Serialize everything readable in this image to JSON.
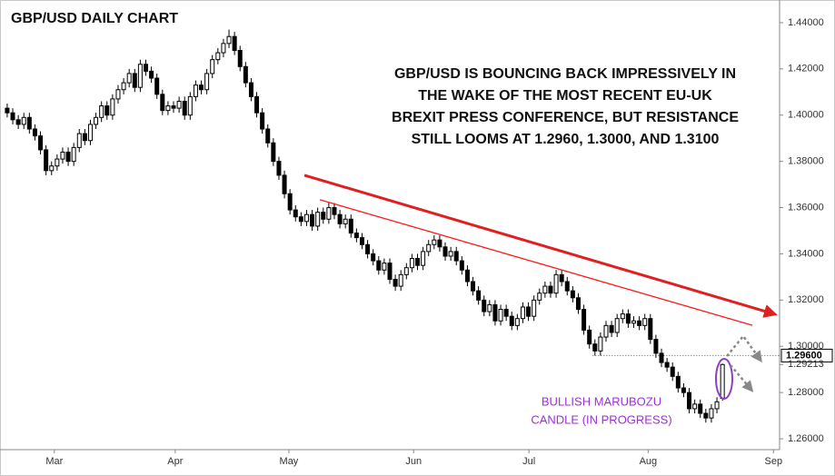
{
  "chart_data": {
    "type": "candlestick",
    "title": "GBP/USD DAILY CHART",
    "annotation": [
      "GBP/USD IS BOUNCING BACK IMPRESSIVELY IN",
      "THE WAKE OF THE MOST RECENT EU-UK",
      "BREXIT PRESS CONFERENCE, BUT RESISTANCE",
      "STILL LOOMS AT 1.2960, 1.3000, AND 1.3100"
    ],
    "candle_note": [
      "BULLISH MARUBOZU",
      "CANDLE (IN PROGRESS)"
    ],
    "open": [
      1.403,
      1.401,
      1.398,
      1.396,
      1.399,
      1.394,
      1.391,
      1.385,
      1.376,
      1.378,
      1.381,
      1.384,
      1.38,
      1.386,
      1.392,
      1.389,
      1.396,
      1.399,
      1.404,
      1.4,
      1.407,
      1.411,
      1.414,
      1.418,
      1.412,
      1.422,
      1.419,
      1.416,
      1.409,
      1.402,
      1.404,
      1.403,
      1.406,
      1.4,
      1.408,
      1.413,
      1.411,
      1.418,
      1.424,
      1.427,
      1.431,
      1.434,
      1.428,
      1.421,
      1.414,
      1.408,
      1.401,
      1.394,
      1.388,
      1.38,
      1.374,
      1.366,
      1.359,
      1.356,
      1.354,
      1.357,
      1.352,
      1.358,
      1.355,
      1.36,
      1.357,
      1.353,
      1.355,
      1.349,
      1.347,
      1.344,
      1.34,
      1.337,
      1.333,
      1.336,
      1.329,
      1.326,
      1.331,
      1.334,
      1.338,
      1.335,
      1.341,
      1.344,
      1.346,
      1.343,
      1.339,
      1.341,
      1.337,
      1.333,
      1.328,
      1.324,
      1.32,
      1.315,
      1.318,
      1.311,
      1.316,
      1.313,
      1.309,
      1.312,
      1.317,
      1.313,
      1.32,
      1.323,
      1.326,
      1.323,
      1.331,
      1.328,
      1.324,
      1.321,
      1.316,
      1.307,
      1.301,
      1.298,
      1.304,
      1.309,
      1.306,
      1.312,
      1.314,
      1.31,
      1.311,
      1.309,
      1.312,
      1.303,
      1.297,
      1.293,
      1.291,
      1.287,
      1.282,
      1.28,
      1.273,
      1.275,
      1.271,
      1.269,
      1.273,
      1.2775
    ],
    "high": [
      1.405,
      1.403,
      1.4,
      1.401,
      1.401,
      1.396,
      1.393,
      1.387,
      1.38,
      1.383,
      1.386,
      1.386,
      1.388,
      1.394,
      1.394,
      1.398,
      1.401,
      1.406,
      1.406,
      1.409,
      1.413,
      1.416,
      1.42,
      1.42,
      1.424,
      1.424,
      1.421,
      1.418,
      1.411,
      1.406,
      1.406,
      1.408,
      1.408,
      1.41,
      1.415,
      1.415,
      1.42,
      1.426,
      1.429,
      1.433,
      1.437,
      1.436,
      1.43,
      1.423,
      1.416,
      1.41,
      1.403,
      1.396,
      1.39,
      1.382,
      1.376,
      1.368,
      1.361,
      1.358,
      1.359,
      1.359,
      1.36,
      1.36,
      1.362,
      1.362,
      1.359,
      1.357,
      1.357,
      1.351,
      1.349,
      1.346,
      1.342,
      1.339,
      1.338,
      1.338,
      1.331,
      1.333,
      1.336,
      1.34,
      1.34,
      1.343,
      1.346,
      1.348,
      1.348,
      1.345,
      1.343,
      1.343,
      1.339,
      1.335,
      1.33,
      1.326,
      1.322,
      1.32,
      1.32,
      1.318,
      1.318,
      1.315,
      1.314,
      1.319,
      1.319,
      1.322,
      1.325,
      1.328,
      1.328,
      1.333,
      1.333,
      1.33,
      1.326,
      1.323,
      1.318,
      1.309,
      1.303,
      1.306,
      1.311,
      1.311,
      1.314,
      1.316,
      1.316,
      1.313,
      1.313,
      1.314,
      1.314,
      1.305,
      1.299,
      1.295,
      1.293,
      1.289,
      1.284,
      1.282,
      1.277,
      1.277,
      1.273,
      1.275,
      1.278,
      1.2925
    ],
    "low": [
      1.399,
      1.396,
      1.394,
      1.394,
      1.392,
      1.389,
      1.383,
      1.374,
      1.374,
      1.376,
      1.379,
      1.378,
      1.378,
      1.384,
      1.387,
      1.387,
      1.394,
      1.397,
      1.398,
      1.398,
      1.405,
      1.409,
      1.412,
      1.41,
      1.41,
      1.417,
      1.414,
      1.407,
      1.4,
      1.4,
      1.401,
      1.401,
      1.398,
      1.398,
      1.406,
      1.409,
      1.409,
      1.416,
      1.422,
      1.425,
      1.429,
      1.426,
      1.419,
      1.412,
      1.406,
      1.399,
      1.392,
      1.386,
      1.378,
      1.372,
      1.364,
      1.357,
      1.354,
      1.352,
      1.352,
      1.35,
      1.35,
      1.353,
      1.353,
      1.355,
      1.351,
      1.351,
      1.347,
      1.345,
      1.342,
      1.338,
      1.335,
      1.331,
      1.331,
      1.327,
      1.324,
      1.324,
      1.329,
      1.332,
      1.333,
      1.333,
      1.339,
      1.342,
      1.341,
      1.337,
      1.337,
      1.335,
      1.331,
      1.326,
      1.322,
      1.318,
      1.313,
      1.313,
      1.309,
      1.309,
      1.311,
      1.307,
      1.307,
      1.31,
      1.311,
      1.311,
      1.318,
      1.321,
      1.321,
      1.321,
      1.326,
      1.322,
      1.319,
      1.314,
      1.305,
      1.299,
      1.296,
      1.296,
      1.302,
      1.304,
      1.304,
      1.31,
      1.308,
      1.308,
      1.307,
      1.307,
      1.301,
      1.295,
      1.291,
      1.289,
      1.285,
      1.28,
      1.278,
      1.271,
      1.271,
      1.269,
      1.267,
      1.267,
      1.271,
      1.2765
    ],
    "close": [
      1.401,
      1.398,
      1.396,
      1.399,
      1.394,
      1.391,
      1.385,
      1.376,
      1.378,
      1.381,
      1.384,
      1.38,
      1.386,
      1.392,
      1.389,
      1.396,
      1.399,
      1.404,
      1.4,
      1.407,
      1.411,
      1.414,
      1.418,
      1.412,
      1.422,
      1.419,
      1.416,
      1.409,
      1.402,
      1.404,
      1.403,
      1.406,
      1.4,
      1.408,
      1.413,
      1.411,
      1.418,
      1.424,
      1.427,
      1.431,
      1.434,
      1.428,
      1.421,
      1.414,
      1.408,
      1.401,
      1.394,
      1.388,
      1.38,
      1.374,
      1.366,
      1.359,
      1.356,
      1.354,
      1.357,
      1.352,
      1.358,
      1.355,
      1.36,
      1.357,
      1.353,
      1.355,
      1.349,
      1.347,
      1.344,
      1.34,
      1.337,
      1.333,
      1.336,
      1.329,
      1.326,
      1.331,
      1.334,
      1.338,
      1.335,
      1.341,
      1.344,
      1.346,
      1.343,
      1.339,
      1.341,
      1.337,
      1.333,
      1.328,
      1.324,
      1.32,
      1.315,
      1.318,
      1.311,
      1.316,
      1.313,
      1.309,
      1.312,
      1.317,
      1.313,
      1.32,
      1.323,
      1.326,
      1.323,
      1.331,
      1.328,
      1.324,
      1.321,
      1.316,
      1.307,
      1.301,
      1.298,
      1.304,
      1.309,
      1.306,
      1.312,
      1.314,
      1.31,
      1.311,
      1.309,
      1.312,
      1.303,
      1.297,
      1.293,
      1.291,
      1.287,
      1.282,
      1.28,
      1.273,
      1.275,
      1.271,
      1.269,
      1.273,
      1.276,
      1.29213
    ],
    "up_color": "#ffffff",
    "down_color": "#000000",
    "xlim": [
      -1.3,
      139.3
    ],
    "xticks": [
      {
        "value": 8.5,
        "label": "Mar"
      },
      {
        "value": 30.3,
        "label": "Apr"
      },
      {
        "value": 50.8,
        "label": "May"
      },
      {
        "value": 73.3,
        "label": "Jun"
      },
      {
        "value": 94.1,
        "label": "Jul"
      },
      {
        "value": 115.6,
        "label": "Aug"
      },
      {
        "value": 138.2,
        "label": "Sep"
      }
    ],
    "ylim": [
      1.2553,
      1.4498
    ],
    "yticks": [
      {
        "value": 1.26,
        "label": "1.26000"
      },
      {
        "value": 1.28,
        "label": "1.28000"
      },
      {
        "value": 1.3,
        "label": "1.30000"
      },
      {
        "value": 1.32,
        "label": "1.32000"
      },
      {
        "value": 1.34,
        "label": "1.34000"
      },
      {
        "value": 1.36,
        "label": "1.36000"
      },
      {
        "value": 1.38,
        "label": "1.38000"
      },
      {
        "value": 1.4,
        "label": "1.40000"
      },
      {
        "value": 1.42,
        "label": "1.42000"
      },
      {
        "value": 1.44,
        "label": "1.44000"
      }
    ],
    "resistance": {
      "value": 1.296,
      "label": "1.29600",
      "x_start": 105.6
    },
    "last_price": {
      "value": 1.29213,
      "label": "1.29213"
    },
    "trendlines": [
      {
        "x": [
          53.6,
          138.0
        ],
        "y": [
          1.374,
          1.3142
        ],
        "color": "#e02020",
        "width": 3
      },
      {
        "x": [
          56.4,
          134.4
        ],
        "y": [
          1.3634,
          1.3091
        ],
        "color": "#ff1a1a",
        "width": 1.3
      }
    ]
  }
}
